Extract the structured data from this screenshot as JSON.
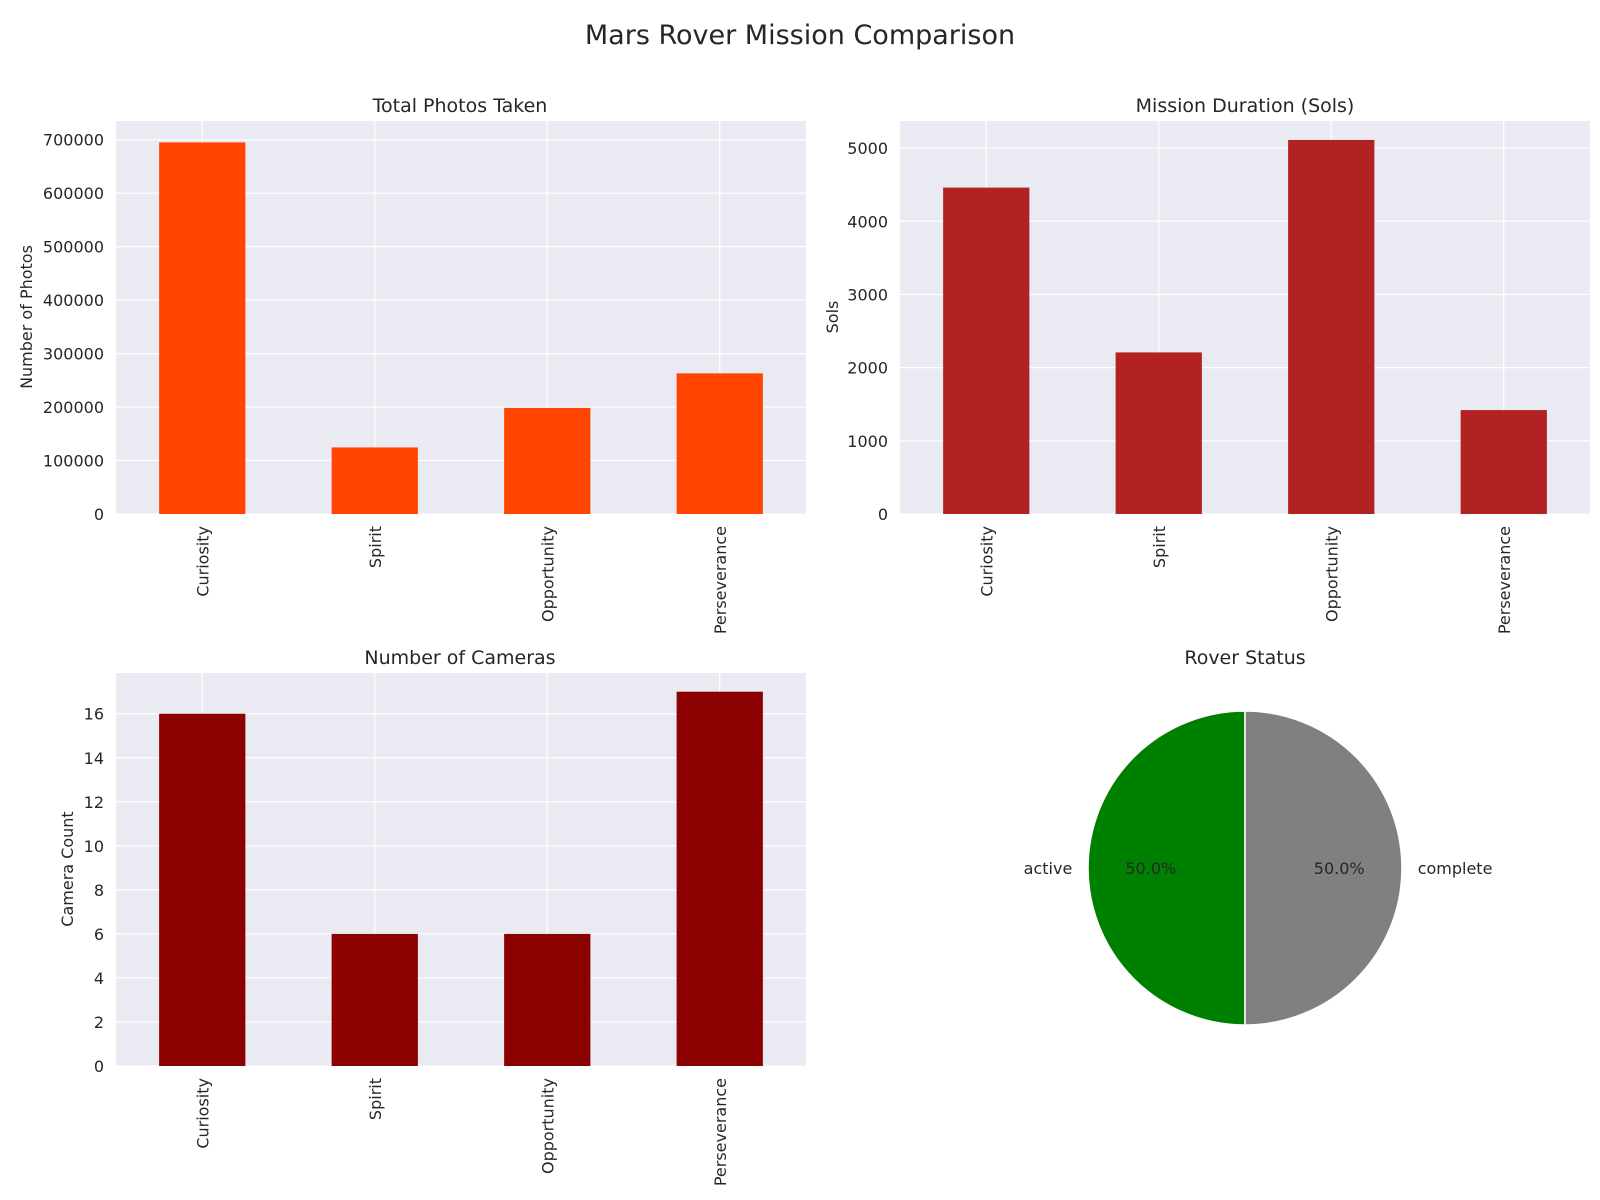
{
  "figure": {
    "title": "Mars Rover Mission Comparison"
  },
  "chart_data": [
    {
      "type": "bar",
      "title": "Total Photos Taken",
      "xlabel": "",
      "ylabel": "Number of Photos",
      "categories": [
        "Curiosity",
        "Spirit",
        "Opportunity",
        "Perseverance"
      ],
      "values": [
        695000,
        124500,
        198400,
        263000
      ],
      "ylim": [
        0,
        735000
      ],
      "yticks": [
        0,
        100000,
        200000,
        300000,
        400000,
        500000,
        600000,
        700000
      ],
      "ytick_labels": [
        "0",
        "100000",
        "200000",
        "300000",
        "400000",
        "500000",
        "600000",
        "700000"
      ],
      "color": "#ff4500",
      "grid": true,
      "legend": "none"
    },
    {
      "type": "bar",
      "title": "Mission Duration (Sols)",
      "xlabel": "",
      "ylabel": "Sols",
      "categories": [
        "Curiosity",
        "Spirit",
        "Opportunity",
        "Perseverance"
      ],
      "values": [
        4460,
        2208,
        5111,
        1420
      ],
      "ylim": [
        0,
        5370
      ],
      "yticks": [
        0,
        1000,
        2000,
        3000,
        4000,
        5000
      ],
      "ytick_labels": [
        "0",
        "1000",
        "2000",
        "3000",
        "4000",
        "5000"
      ],
      "color": "#b22222",
      "grid": true,
      "legend": "none"
    },
    {
      "type": "bar",
      "title": "Number of Cameras",
      "xlabel": "",
      "ylabel": "Camera Count",
      "categories": [
        "Curiosity",
        "Spirit",
        "Opportunity",
        "Perseverance"
      ],
      "values": [
        16,
        6,
        6,
        17
      ],
      "ylim": [
        0,
        17.85
      ],
      "yticks": [
        0,
        2,
        4,
        6,
        8,
        10,
        12,
        14,
        16
      ],
      "ytick_labels": [
        "0",
        "2",
        "4",
        "6",
        "8",
        "10",
        "12",
        "14",
        "16"
      ],
      "color": "#8b0000",
      "grid": true,
      "legend": "none"
    },
    {
      "type": "pie",
      "title": "Rover Status",
      "labels": [
        "active",
        "complete"
      ],
      "values": [
        2,
        2
      ],
      "percent_labels": [
        "50.0%",
        "50.0%"
      ],
      "colors": [
        "#008000",
        "#808080"
      ],
      "start_angle": 90,
      "direction": "counterclockwise",
      "legend": "none"
    }
  ]
}
